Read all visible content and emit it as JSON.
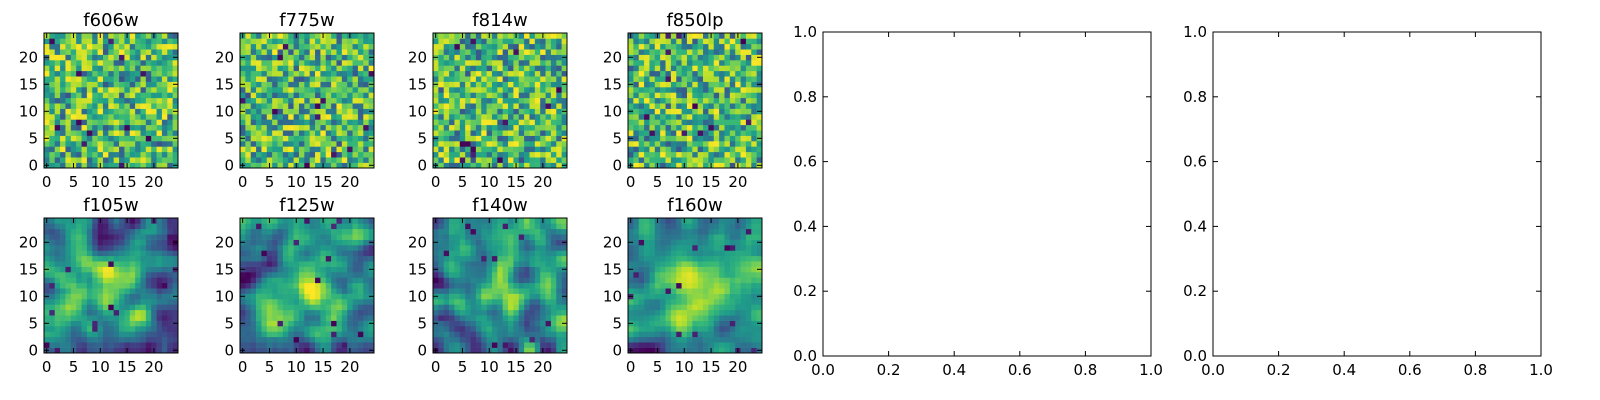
{
  "chart_data": [
    {
      "type": "heatmap",
      "title": "f606w",
      "xlim": [
        -0.5,
        24.5
      ],
      "ylim": [
        -0.5,
        24.5
      ],
      "x_ticks": [
        0,
        5,
        10,
        15,
        20
      ],
      "y_ticks": [
        0,
        5,
        10,
        15,
        20
      ],
      "colormap": "viridis",
      "grid_size": [
        25,
        25
      ],
      "texture": "uniform noise",
      "seed": 11
    },
    {
      "type": "heatmap",
      "title": "f775w",
      "xlim": [
        -0.5,
        24.5
      ],
      "ylim": [
        -0.5,
        24.5
      ],
      "x_ticks": [
        0,
        5,
        10,
        15,
        20
      ],
      "y_ticks": [
        0,
        5,
        10,
        15,
        20
      ],
      "colormap": "viridis",
      "grid_size": [
        25,
        25
      ],
      "texture": "uniform noise",
      "seed": 23
    },
    {
      "type": "heatmap",
      "title": "f814w",
      "xlim": [
        -0.5,
        24.5
      ],
      "ylim": [
        -0.5,
        24.5
      ],
      "x_ticks": [
        0,
        5,
        10,
        15,
        20
      ],
      "y_ticks": [
        0,
        5,
        10,
        15,
        20
      ],
      "colormap": "viridis",
      "grid_size": [
        25,
        25
      ],
      "texture": "uniform noise",
      "seed": 37
    },
    {
      "type": "heatmap",
      "title": "f850lp",
      "xlim": [
        -0.5,
        24.5
      ],
      "ylim": [
        -0.5,
        24.5
      ],
      "x_ticks": [
        0,
        5,
        10,
        15,
        20
      ],
      "y_ticks": [
        0,
        5,
        10,
        15,
        20
      ],
      "colormap": "viridis",
      "grid_size": [
        25,
        25
      ],
      "texture": "uniform noise",
      "seed": 41
    },
    {
      "type": "line",
      "title": "",
      "xlim": [
        0.0,
        1.0
      ],
      "ylim": [
        0.0,
        1.0
      ],
      "x_ticks": [
        "0.0",
        "0.2",
        "0.4",
        "0.6",
        "0.8",
        "1.0"
      ],
      "y_ticks": [
        "0.0",
        "0.2",
        "0.4",
        "0.6",
        "0.8",
        "1.0"
      ],
      "series": []
    },
    {
      "type": "line",
      "title": "",
      "xlim": [
        0.0,
        1.0
      ],
      "ylim": [
        0.0,
        1.0
      ],
      "x_ticks": [
        "0.0",
        "0.2",
        "0.4",
        "0.6",
        "0.8",
        "1.0"
      ],
      "y_ticks": [
        "0.0",
        "0.2",
        "0.4",
        "0.6",
        "0.8",
        "1.0"
      ],
      "series": []
    },
    {
      "type": "heatmap",
      "title": "f105w",
      "xlim": [
        -0.5,
        24.5
      ],
      "ylim": [
        -0.5,
        24.5
      ],
      "x_ticks": [
        0,
        5,
        10,
        15,
        20
      ],
      "y_ticks": [
        0,
        5,
        10,
        15,
        20
      ],
      "colormap": "viridis",
      "grid_size": [
        25,
        25
      ],
      "texture": "smooth blob, bright center",
      "seed": 53
    },
    {
      "type": "heatmap",
      "title": "f125w",
      "xlim": [
        -0.5,
        24.5
      ],
      "ylim": [
        -0.5,
        24.5
      ],
      "x_ticks": [
        0,
        5,
        10,
        15,
        20
      ],
      "y_ticks": [
        0,
        5,
        10,
        15,
        20
      ],
      "colormap": "viridis",
      "grid_size": [
        25,
        25
      ],
      "texture": "smooth blob, bright center",
      "seed": 67
    },
    {
      "type": "heatmap",
      "title": "f140w",
      "xlim": [
        -0.5,
        24.5
      ],
      "ylim": [
        -0.5,
        24.5
      ],
      "x_ticks": [
        0,
        5,
        10,
        15,
        20
      ],
      "y_ticks": [
        0,
        5,
        10,
        15,
        20
      ],
      "colormap": "viridis",
      "grid_size": [
        25,
        25
      ],
      "texture": "smooth blob, bright center",
      "seed": 79
    },
    {
      "type": "heatmap",
      "title": "f160w",
      "xlim": [
        -0.5,
        24.5
      ],
      "ylim": [
        -0.5,
        24.5
      ],
      "x_ticks": [
        0,
        5,
        10,
        15,
        20
      ],
      "y_ticks": [
        0,
        5,
        10,
        15,
        20
      ],
      "colormap": "viridis",
      "grid_size": [
        25,
        25
      ],
      "texture": "smooth blob, bright center",
      "seed": 97
    }
  ]
}
